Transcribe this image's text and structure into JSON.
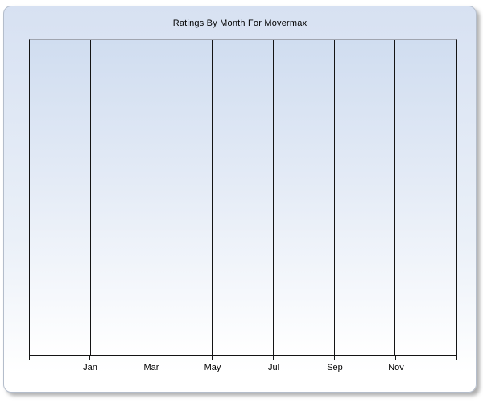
{
  "window": {
    "background": "#ffffff"
  },
  "chart": {
    "title": "Ratings By Month For Movermax"
  },
  "chart_data": {
    "type": "line",
    "title": "Ratings By Month For Movermax",
    "x_tick_labels": [
      "Jan",
      "Mar",
      "May",
      "Jul",
      "Sep",
      "Nov"
    ],
    "x_gridline_count": 8,
    "series": [],
    "has_data": false,
    "xlabel": "",
    "ylabel": "",
    "y_tick_labels": [],
    "legend": "none",
    "grid": "vertical-major-only"
  },
  "colors": {
    "panel_gradient_top": "#d7e1f2",
    "panel_gradient_bottom": "#ffffff",
    "panel_border": "#b4bdcb",
    "plot_gradient_top": "#d0ddf0",
    "plot_gradient_bottom": "#ffffff",
    "plot_top_border": "#a0a5b0",
    "gridline": "#141414",
    "axis": "#141414",
    "text": "#000000"
  }
}
